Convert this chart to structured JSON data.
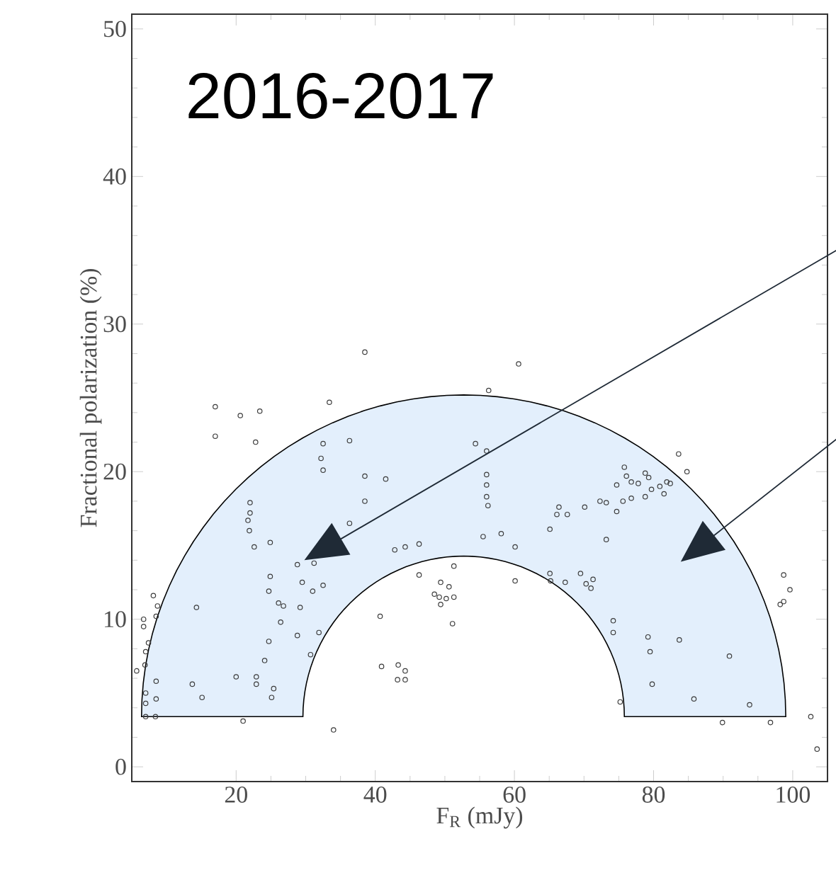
{
  "chart_data": {
    "type": "scatter",
    "xlabel": "F$_{R}$ (mJy)",
    "ylabel": "Fractional polarization (%)",
    "annotations": [
      "2016-2017"
    ],
    "xlim": [
      5,
      105
    ],
    "ylim": [
      -1,
      51
    ],
    "xticks": [
      20,
      40,
      60,
      80,
      100
    ],
    "yticks": [
      0,
      10,
      20,
      30,
      40,
      50
    ],
    "marker": "circle",
    "series": [
      {
        "color": "#3c3c3c",
        "x": [
          17.0,
          20.6,
          23.4,
          17.0,
          22.8,
          33.4,
          32.5,
          32.2,
          32.5,
          36.3,
          22.0,
          22.0,
          21.7,
          21.9,
          22.6,
          24.9,
          36.3,
          28.8,
          31.2,
          24.9,
          24.7,
          29.5,
          31.0,
          32.5,
          26.1,
          26.8,
          29.2,
          26.4,
          28.8,
          31.9,
          24.7,
          24.1,
          30.7,
          20.0,
          22.9,
          22.9,
          25.4,
          25.1,
          13.7,
          15.1,
          14.3,
          8.1,
          8.7,
          8.5,
          6.7,
          6.7,
          7.4,
          7.0,
          6.9,
          5.7,
          8.5,
          7.0,
          7.0,
          8.5,
          7.0,
          8.4,
          21.0,
          34.0,
          38.5,
          60.6,
          56.3,
          54.4,
          56.0,
          38.5,
          41.5,
          38.5,
          56.0,
          56.0,
          56.0,
          56.2,
          66.4,
          66.1,
          67.6,
          70.1,
          65.1,
          55.5,
          58.1,
          60.1,
          42.8,
          44.3,
          46.3,
          46.3,
          51.3,
          49.4,
          50.6,
          48.5,
          49.2,
          50.2,
          51.3,
          49.4,
          51.1,
          60.1,
          65.1,
          65.2,
          67.3,
          69.5,
          70.3,
          71.0,
          40.7,
          40.9,
          43.3,
          44.3,
          43.2,
          44.3,
          83.6,
          84.8,
          75.8,
          76.1,
          78.8,
          79.3,
          74.7,
          76.8,
          77.8,
          80.9,
          81.9,
          82.4,
          76.8,
          75.6,
          78.8,
          79.7,
          81.5,
          74.7,
          72.3,
          73.2,
          73.2,
          71.3,
          74.2,
          74.2,
          79.2,
          83.7,
          79.5,
          90.9,
          79.8,
          85.8,
          75.2,
          93.8,
          89.9,
          96.8,
          98.7,
          99.6,
          98.2,
          98.7,
          102.6,
          103.5
        ],
        "values": [
          24.4,
          23.8,
          24.1,
          22.4,
          22.0,
          24.7,
          21.9,
          20.9,
          20.1,
          22.1,
          17.9,
          17.2,
          16.7,
          16.0,
          14.9,
          15.2,
          16.5,
          13.7,
          13.8,
          12.9,
          11.9,
          12.5,
          11.9,
          12.3,
          11.1,
          10.9,
          10.8,
          9.8,
          8.9,
          9.1,
          8.5,
          7.2,
          7.6,
          6.1,
          6.1,
          5.6,
          5.3,
          4.7,
          5.6,
          4.7,
          10.8,
          11.6,
          10.9,
          10.2,
          10.0,
          9.5,
          8.4,
          7.8,
          6.9,
          6.5,
          5.8,
          5.0,
          4.3,
          4.6,
          3.4,
          3.4,
          3.1,
          2.5,
          28.1,
          27.3,
          25.5,
          21.9,
          21.4,
          19.7,
          19.5,
          18.0,
          19.8,
          19.1,
          18.3,
          17.7,
          17.6,
          17.1,
          17.1,
          17.6,
          16.1,
          15.6,
          15.8,
          14.9,
          14.7,
          14.9,
          15.1,
          13.0,
          13.6,
          12.5,
          12.2,
          11.7,
          11.5,
          11.4,
          11.5,
          11.0,
          9.7,
          12.6,
          13.1,
          12.6,
          12.5,
          13.1,
          12.4,
          12.1,
          10.2,
          6.8,
          6.9,
          6.5,
          5.9,
          5.9,
          21.2,
          20.0,
          20.3,
          19.7,
          19.9,
          19.6,
          19.1,
          19.3,
          19.2,
          19.0,
          19.3,
          19.2,
          18.2,
          18.0,
          18.3,
          18.8,
          18.5,
          17.3,
          18.0,
          17.9,
          15.4,
          12.7,
          9.9,
          9.1,
          8.8,
          8.6,
          7.8,
          7.5,
          5.6,
          4.6,
          4.4,
          4.2,
          3.0,
          3.0,
          13.0,
          12.0,
          11.0,
          11.2,
          3.4,
          1.2
        ]
      }
    ]
  }
}
